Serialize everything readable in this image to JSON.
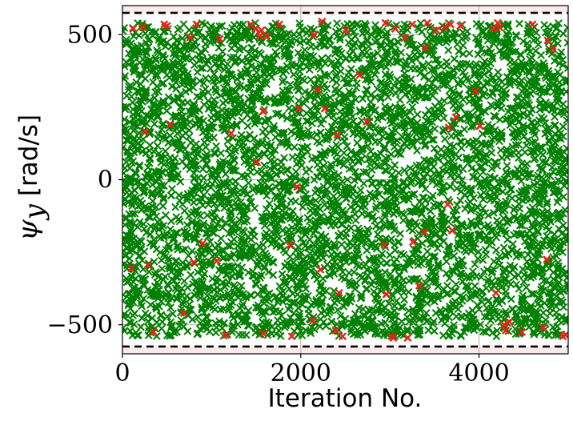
{
  "chart_data": {
    "type": "scatter",
    "title": "",
    "xlabel": "Iteration No.",
    "ylabel": {
      "symbol": "ψ",
      "subscript": "y",
      "unit": "[rad/s]"
    },
    "xlim": [
      0,
      5000
    ],
    "ylim": [
      -600,
      600
    ],
    "xticks": [
      0,
      2000,
      4000
    ],
    "xtick_labels": [
      "0",
      "2000",
      "4000"
    ],
    "yticks": [
      -500,
      0,
      500
    ],
    "ytick_labels": [
      "−500",
      "0",
      "500"
    ],
    "grid": true,
    "legend": "none",
    "bounds": {
      "upper": 575,
      "lower": -575,
      "style": "dashed"
    },
    "shaded_band_above": [
      575,
      600
    ],
    "shaded_band_below": [
      -600,
      -575
    ],
    "series": [
      {
        "marker": "x",
        "color": "#008000",
        "n_points": 5000,
        "x_range": [
          0,
          5000
        ],
        "y_range": [
          -540,
          540
        ],
        "distribution": "uniform"
      },
      {
        "marker": "x",
        "color": "#e8221b",
        "points": [
          [
            100,
            -305
          ],
          [
            120,
            520
          ],
          [
            230,
            525
          ],
          [
            260,
            165
          ],
          [
            290,
            -295
          ],
          [
            350,
            -525
          ],
          [
            470,
            535
          ],
          [
            500,
            530
          ],
          [
            540,
            190
          ],
          [
            690,
            -460
          ],
          [
            760,
            490
          ],
          [
            800,
            -285
          ],
          [
            830,
            535
          ],
          [
            900,
            -220
          ],
          [
            1060,
            -280
          ],
          [
            1090,
            485
          ],
          [
            1160,
            -535
          ],
          [
            1220,
            160
          ],
          [
            1440,
            535
          ],
          [
            1490,
            520
          ],
          [
            1510,
            60
          ],
          [
            1540,
            495
          ],
          [
            1560,
            515
          ],
          [
            1580,
            235
          ],
          [
            1580,
            -530
          ],
          [
            1620,
            495
          ],
          [
            1760,
            535
          ],
          [
            1880,
            -225
          ],
          [
            1900,
            -540
          ],
          [
            1960,
            -25
          ],
          [
            1980,
            245
          ],
          [
            2140,
            -485
          ],
          [
            2150,
            500
          ],
          [
            2190,
            310
          ],
          [
            2220,
            -310
          ],
          [
            2240,
            545
          ],
          [
            2270,
            245
          ],
          [
            2390,
            -520
          ],
          [
            2410,
            155
          ],
          [
            2430,
            -390
          ],
          [
            2470,
            -540
          ],
          [
            2510,
            515
          ],
          [
            2660,
            360
          ],
          [
            2740,
            200
          ],
          [
            2940,
            -225
          ],
          [
            2950,
            540
          ],
          [
            2960,
            -395
          ],
          [
            3020,
            -540
          ],
          [
            3040,
            -545
          ],
          [
            3060,
            520
          ],
          [
            3170,
            490
          ],
          [
            3200,
            -545
          ],
          [
            3250,
            535
          ],
          [
            3260,
            -215
          ],
          [
            3330,
            -365
          ],
          [
            3390,
            -180
          ],
          [
            3400,
            455
          ],
          [
            3420,
            540
          ],
          [
            3520,
            515
          ],
          [
            3610,
            525
          ],
          [
            3650,
            -85
          ],
          [
            3660,
            180
          ],
          [
            3680,
            535
          ],
          [
            3700,
            -175
          ],
          [
            3740,
            215
          ],
          [
            3790,
            530
          ],
          [
            3960,
            305
          ],
          [
            4010,
            185
          ],
          [
            4160,
            520
          ],
          [
            4190,
            -390
          ],
          [
            4210,
            540
          ],
          [
            4230,
            525
          ],
          [
            4280,
            -500
          ],
          [
            4300,
            -520
          ],
          [
            4340,
            -490
          ],
          [
            4480,
            -525
          ],
          [
            4600,
            535
          ],
          [
            4720,
            -510
          ],
          [
            4760,
            -275
          ],
          [
            4770,
            480
          ],
          [
            4830,
            450
          ],
          [
            4940,
            -540
          ],
          [
            4970,
            -535
          ]
        ]
      }
    ]
  }
}
